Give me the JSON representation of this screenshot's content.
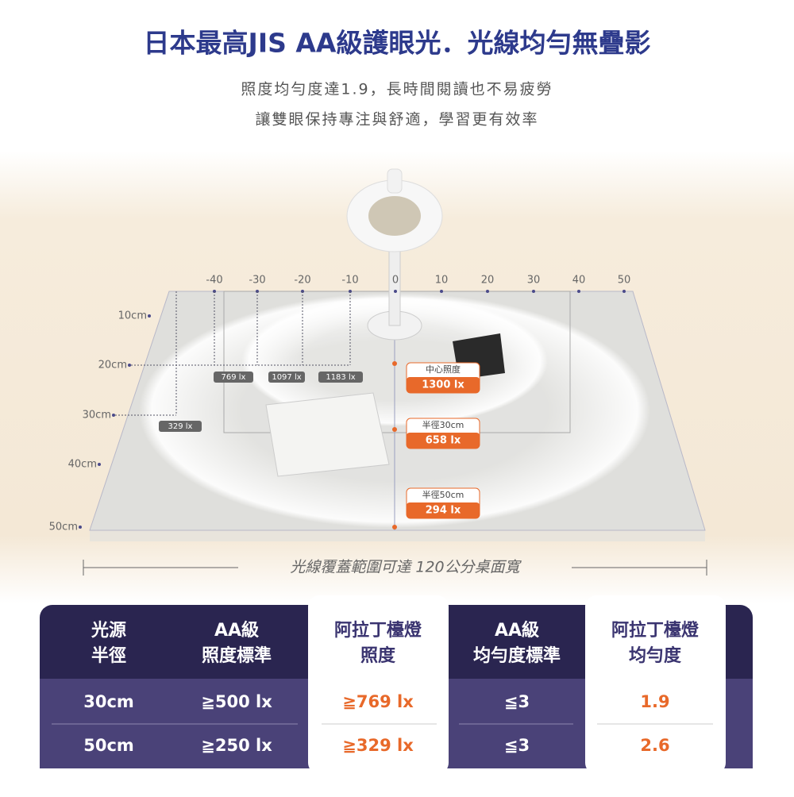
{
  "header": {
    "title": "日本最高JIS AA級護眼光．光線均勻無疊影",
    "subtitle": [
      "照度均勻度達1.9，長時間閱讀也不易疲勞",
      "讓雙眼保持專注與舒適，學習更有效率"
    ]
  },
  "diagram": {
    "x_labels": [
      "-40",
      "-30",
      "-20",
      "-10",
      "0",
      "10",
      "20",
      "30",
      "40",
      "50"
    ],
    "y_labels": [
      "10cm",
      "20cm",
      "30cm",
      "40cm",
      "50cm"
    ],
    "lux_points": [
      "769 lx",
      "1097 lx",
      "1183 lx",
      "329 lx"
    ],
    "callouts": [
      {
        "label": "中心照度",
        "value": "1300 lx"
      },
      {
        "label": "半徑30cm",
        "value": "658 lx"
      },
      {
        "label": "半徑50cm",
        "value": "294 lx"
      }
    ],
    "caption": "光線覆蓋範圍可達 120公分桌面寬"
  },
  "table": {
    "headers": [
      "光源\n半徑",
      "AA級\n照度標準",
      "阿拉丁檯燈\n照度",
      "AA級\n均勻度標準",
      "阿拉丁檯燈\n均勻度"
    ],
    "rows": [
      [
        "30cm",
        "≧500 lx",
        "≧769 lx",
        "≦3",
        "1.9"
      ],
      [
        "50cm",
        "≧250 lx",
        "≧329 lx",
        "≦3",
        "2.6"
      ]
    ]
  }
}
